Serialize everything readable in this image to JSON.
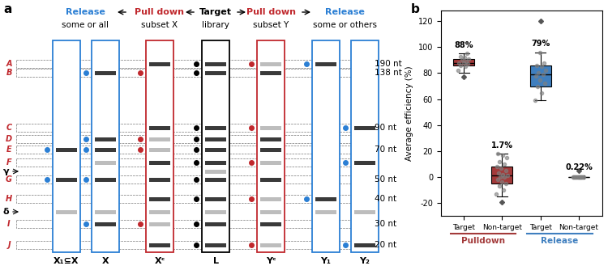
{
  "panel_a": {
    "label": "a",
    "header": [
      {
        "text": "Release",
        "sub": "some or all",
        "color": "#2b7fd4"
      },
      {
        "text": "Pull down",
        "sub": "subset X",
        "color": "#c0282d"
      },
      {
        "text": "Target",
        "sub": "library",
        "color": "#000000"
      },
      {
        "text": "Pull down",
        "sub": "subset Y",
        "color": "#c0282d"
      },
      {
        "text": "Release",
        "sub": "some or others",
        "color": "#2b7fd4"
      }
    ],
    "levels": [
      {
        "id": "A",
        "size": "190 nt"
      },
      {
        "id": "B",
        "size": "138 nt"
      },
      {
        "id": "C",
        "size": "90 nt"
      },
      {
        "id": "D"
      },
      {
        "id": "E",
        "size": "70 nt"
      },
      {
        "id": "F"
      },
      {
        "id": "γ",
        "arrow": true
      },
      {
        "id": "G",
        "size": "50 nt"
      },
      {
        "id": "H",
        "size": "40 nt"
      },
      {
        "id": "δ",
        "arrow": true
      },
      {
        "id": "I",
        "size": "30 nt"
      },
      {
        "id": "J",
        "size": "20 nt"
      }
    ],
    "lanes": [
      {
        "name": "X₁⊆X",
        "color": "#2b7fd4",
        "dots": [
          "E",
          "G"
        ],
        "strong": [
          "E",
          "G"
        ],
        "faint": [
          "δ"
        ]
      },
      {
        "name": "X",
        "color": "#2b7fd4",
        "dots": [
          "B",
          "D",
          "E",
          "G",
          "I"
        ],
        "strong": [
          "B",
          "D",
          "E",
          "G",
          "I"
        ],
        "faint": [
          "F",
          "δ"
        ]
      },
      {
        "name": "Xᶜ",
        "color": "#c0282d",
        "dots": [
          "B",
          "D",
          "E",
          "I"
        ],
        "strong": [
          "A",
          "C",
          "F",
          "G",
          "H",
          "J"
        ],
        "faint": [
          "D",
          "E",
          "I",
          "δ"
        ]
      },
      {
        "name": "L",
        "color": "#000000",
        "dots": [
          "A",
          "B",
          "C",
          "D",
          "E",
          "F",
          "G",
          "H",
          "I",
          "J"
        ],
        "strong": [
          "A",
          "B",
          "C",
          "D",
          "E",
          "F",
          "G",
          "H",
          "I",
          "J"
        ],
        "faint": [
          "γ",
          "δ"
        ]
      },
      {
        "name": "Yᶜ",
        "color": "#c0282d",
        "dots": [
          "A",
          "C",
          "F",
          "H",
          "J"
        ],
        "strong": [
          "B",
          "D",
          "E",
          "G",
          "I"
        ],
        "faint": [
          "A",
          "C",
          "F",
          "H",
          "J",
          "δ"
        ]
      },
      {
        "name": "Y₁",
        "color": "#2b7fd4",
        "dots": [
          "A",
          "H"
        ],
        "strong": [
          "A",
          "H"
        ],
        "faint": [
          "δ"
        ]
      },
      {
        "name": "Y₂",
        "color": "#2b7fd4",
        "dots": [
          "C",
          "F",
          "J"
        ],
        "strong": [
          "C",
          "F",
          "J"
        ],
        "faint": [
          "δ"
        ]
      }
    ]
  },
  "chart_data": {
    "type": "box",
    "label": "b",
    "ylabel": "Average efficiency (%)",
    "ylim": [
      -30,
      128
    ],
    "yticks": [
      -20,
      0,
      20,
      40,
      60,
      80,
      100,
      120
    ],
    "series": [
      {
        "name": "Pulldown",
        "color": "#a33a3a",
        "categories": [
          "Target",
          "Non-target"
        ],
        "boxes": [
          {
            "q1": 86,
            "median": 88,
            "q3": 91,
            "whislo": 80,
            "whishi": 95,
            "fliers": [
              77
            ],
            "points": [
              82,
              85,
              86,
              87,
              88,
              88,
              89,
              90,
              91,
              92,
              93,
              95
            ],
            "mean": 88,
            "mean_label": "88%"
          },
          {
            "q1": -5,
            "median": 1,
            "q3": 8,
            "whislo": -15,
            "whishi": 18,
            "fliers": [
              -19
            ],
            "points": [
              -13,
              -10,
              -7,
              -5,
              -4,
              -2,
              0,
              0,
              1,
              2,
              3,
              5,
              7,
              8,
              10,
              12,
              15,
              17,
              18
            ],
            "mean": 1.7,
            "mean_label": "1.7%"
          }
        ]
      },
      {
        "name": "Release",
        "color": "#3f7fbf",
        "categories": [
          "Target",
          "Non-target"
        ],
        "boxes": [
          {
            "q1": 70,
            "median": 79,
            "q3": 86,
            "whislo": 59,
            "whishi": 96,
            "fliers": [
              120
            ],
            "points": [
              59,
              65,
              70,
              72,
              75,
              78,
              79,
              80,
              82,
              85,
              86,
              88,
              96
            ],
            "mean": 79,
            "mean_label": "79%"
          },
          {
            "q1": 0,
            "median": 0,
            "q3": 0.3,
            "whislo": -1,
            "whishi": 1,
            "fliers": [
              5
            ],
            "points": [
              0,
              0,
              0,
              0,
              0,
              0,
              0,
              0,
              0,
              0,
              0,
              0,
              0,
              0,
              0
            ],
            "mean": 0.22,
            "mean_label": "0.22%"
          }
        ]
      }
    ]
  }
}
